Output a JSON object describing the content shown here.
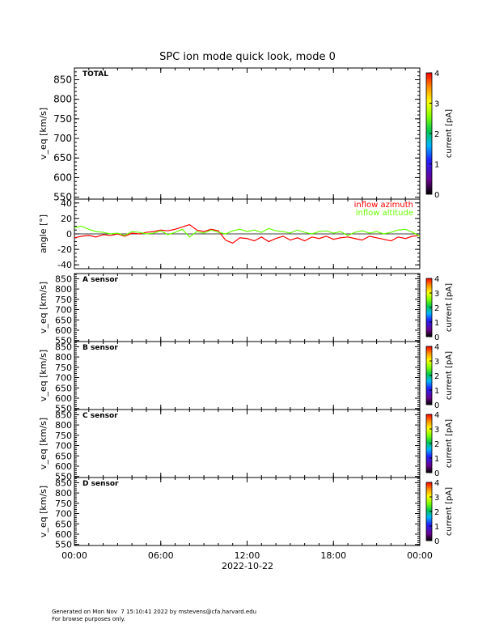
{
  "title": "SPC ion mode quick look, mode 0",
  "date_label": "2022-10-22",
  "footer": {
    "line1": "Generated on Mon Nov  7 15:10:41 2022 by mstevens@cfa.harvard.edu",
    "line2": "For browse purposes only."
  },
  "colors": {
    "azimuth": "#ff0000",
    "altitude": "#66ff00",
    "axes": "#000000",
    "colorbar": [
      "#000000",
      "#7a00a0",
      "#0000ff",
      "#00c8ff",
      "#00d000",
      "#b4ff00",
      "#ffff00",
      "#ff8c00",
      "#ff0000"
    ]
  },
  "chart_data": [
    {
      "type": "heatmap",
      "panel": "total",
      "label": "TOTAL",
      "ylabel": "v_eq [km/s]",
      "ylim": [
        545,
        880
      ],
      "yticks": [
        550,
        600,
        650,
        700,
        750,
        800,
        850
      ],
      "colorbar": {
        "label": "current [pA]",
        "range": [
          0,
          4
        ],
        "ticks": [
          0,
          1,
          2,
          3,
          4
        ]
      },
      "values": []
    },
    {
      "type": "line",
      "panel": "angle",
      "ylabel": "angle [°]",
      "ylim": [
        -45,
        45
      ],
      "yticks": [
        -40,
        -20,
        0,
        20,
        40
      ],
      "zero_line": true,
      "legend_position": "top-right",
      "series": [
        {
          "name": "inflow azimuth",
          "color": "#ff0000",
          "x": [
            0,
            0.5,
            1,
            1.5,
            2,
            2.5,
            3,
            3.5,
            4,
            4.5,
            5,
            5.5,
            6,
            6.5,
            7,
            7.5,
            8,
            8.5,
            9,
            9.5,
            10,
            10.5,
            11,
            11.5,
            12,
            12.5,
            13,
            13.5,
            14,
            14.5,
            15,
            15.5,
            16,
            16.5,
            17,
            17.5,
            18,
            18.5,
            19,
            19.5,
            20,
            20.5,
            21,
            21.5,
            22,
            22.5,
            23,
            23.5,
            24
          ],
          "y": [
            -5,
            -3,
            -2,
            -4,
            -1,
            -2,
            0,
            -3,
            1,
            0,
            2,
            3,
            5,
            4,
            6,
            9,
            12,
            5,
            3,
            6,
            4,
            -8,
            -12,
            -5,
            -6,
            -9,
            -4,
            -10,
            -6,
            -3,
            -8,
            -5,
            -9,
            -4,
            -6,
            -3,
            -7,
            -5,
            -4,
            -6,
            -8,
            -3,
            -5,
            -7,
            -9,
            -4,
            -6,
            -3,
            -2
          ]
        },
        {
          "name": "inflow altitude",
          "color": "#66ff00",
          "x": [
            0,
            0.5,
            1,
            1.5,
            2,
            2.5,
            3,
            3.5,
            4,
            4.5,
            5,
            5.5,
            6,
            6.5,
            7,
            7.5,
            8,
            8.5,
            9,
            9.5,
            10,
            10.5,
            11,
            11.5,
            12,
            12.5,
            13,
            13.5,
            14,
            14.5,
            15,
            15.5,
            16,
            16.5,
            17,
            17.5,
            18,
            18.5,
            19,
            19.5,
            20,
            20.5,
            21,
            21.5,
            22,
            22.5,
            23,
            23.5,
            24
          ],
          "y": [
            8,
            10,
            6,
            3,
            2,
            0,
            1,
            -2,
            3,
            2,
            0,
            1,
            4,
            -1,
            2,
            6,
            -4,
            3,
            1,
            5,
            2,
            0,
            4,
            6,
            3,
            5,
            2,
            7,
            4,
            3,
            1,
            5,
            2,
            0,
            3,
            4,
            1,
            3,
            -2,
            2,
            4,
            1,
            3,
            0,
            2,
            5,
            6,
            2,
            -3
          ]
        }
      ]
    },
    {
      "type": "heatmap",
      "panel": "A",
      "label": "A sensor",
      "ylabel": "v_eq [km/s]",
      "ylim": [
        545,
        875
      ],
      "yticks": [
        550,
        600,
        650,
        700,
        750,
        800,
        850
      ],
      "colorbar": {
        "label": "current [pA]",
        "range": [
          0,
          4
        ],
        "ticks": [
          0,
          1,
          2,
          3,
          4
        ]
      },
      "values": []
    },
    {
      "type": "heatmap",
      "panel": "B",
      "label": "B sensor",
      "ylabel": "v_eq [km/s]",
      "ylim": [
        545,
        875
      ],
      "yticks": [
        550,
        600,
        650,
        700,
        750,
        800,
        850
      ],
      "colorbar": {
        "label": "current [pA]",
        "range": [
          0,
          4
        ],
        "ticks": [
          0,
          1,
          2,
          3,
          4
        ]
      },
      "values": []
    },
    {
      "type": "heatmap",
      "panel": "C",
      "label": "C sensor",
      "ylabel": "v_eq [km/s]",
      "ylim": [
        545,
        875
      ],
      "yticks": [
        550,
        600,
        650,
        700,
        750,
        800,
        850
      ],
      "colorbar": {
        "label": "current [pA]",
        "range": [
          0,
          4
        ],
        "ticks": [
          0,
          1,
          2,
          3,
          4
        ]
      },
      "values": []
    },
    {
      "type": "heatmap",
      "panel": "D",
      "label": "D sensor",
      "ylabel": "v_eq [km/s]",
      "ylim": [
        545,
        875
      ],
      "yticks": [
        550,
        600,
        650,
        700,
        750,
        800,
        850
      ],
      "colorbar": {
        "label": "current [pA]",
        "range": [
          0,
          4
        ],
        "ticks": [
          0,
          1,
          2,
          3,
          4
        ]
      },
      "values": []
    }
  ],
  "x_axis": {
    "xlim": [
      0,
      24
    ],
    "ticks": [
      0,
      6,
      12,
      18,
      24
    ],
    "tick_labels": [
      "00:00",
      "06:00",
      "12:00",
      "18:00",
      "00:00"
    ],
    "minor_step": 1
  }
}
